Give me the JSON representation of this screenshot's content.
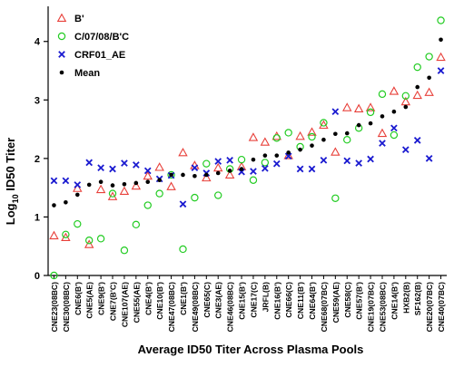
{
  "chart_data": {
    "type": "scatter",
    "xlabel": "Average ID50 Titer Across Plasma Pools",
    "ylabel": "Log10 ID50 Titer",
    "ylabel_main": "Log",
    "ylabel_sub": "10",
    "ylabel_rest": " ID50 Titer",
    "ylim": [
      0,
      4.6
    ],
    "yticks": [
      "0",
      "1",
      "2",
      "3",
      "4"
    ],
    "grid": false,
    "legend_position": "top-left",
    "categories": [
      "CNE23(08BC)",
      "CNE30(08BC)",
      "CNE6(B')",
      "CNE5(AE)",
      "CNE9(B')",
      "CNE7(B'C)",
      "CNE107(AE)",
      "CNE55(AE)",
      "CNE4(B')",
      "CNE10(B')",
      "CNE47(08BC)",
      "CNE1(B')",
      "CNE49(08BC)",
      "CNE65(C)",
      "CNE3(AE)",
      "CNE46(08BC)",
      "CNE15(B')",
      "CNE17(C)",
      "JRFL(B)",
      "CNE16(B')",
      "CNE66(C)",
      "CNE11(B')",
      "CNE64(B')",
      "CNE68(07BC)",
      "CNE59(AE)",
      "CNE58(C)",
      "CNE57(B')",
      "CNE19(07BC)",
      "CNE53(08BC)",
      "CNE14(B')",
      "HXB2(B)",
      "SF162(B)",
      "CNE20(07BC)",
      "CNE40(07BC)"
    ],
    "series": [
      {
        "name": "B'",
        "color": "#e8403a",
        "marker": "triangle-open",
        "values": [
          0.68,
          0.65,
          1.49,
          0.53,
          1.47,
          1.35,
          1.44,
          1.53,
          1.7,
          1.85,
          1.52,
          2.1,
          1.88,
          1.67,
          1.84,
          1.72,
          1.86,
          2.36,
          2.28,
          2.38,
          2.05,
          2.38,
          2.45,
          2.57,
          2.11,
          2.87,
          2.85,
          2.87,
          2.43,
          3.15,
          2.97,
          3.08,
          3.13,
          3.73
        ]
      },
      {
        "name": "C/07/08/B'C",
        "color": "#22cc22",
        "marker": "circle-open",
        "values": [
          0.0,
          0.7,
          0.88,
          0.6,
          0.63,
          1.4,
          0.43,
          0.87,
          1.2,
          1.4,
          1.72,
          0.45,
          1.33,
          1.91,
          1.37,
          1.82,
          1.98,
          1.63,
          1.93,
          2.35,
          2.44,
          2.2,
          2.37,
          2.61,
          1.32,
          2.32,
          2.52,
          2.79,
          3.1,
          2.4,
          3.07,
          3.56,
          3.74,
          4.36
        ]
      },
      {
        "name": "CRF01_AE",
        "color": "#1a1ad0",
        "marker": "x",
        "values": [
          1.62,
          1.62,
          1.55,
          1.93,
          1.84,
          1.82,
          1.92,
          1.89,
          1.79,
          1.65,
          1.71,
          1.22,
          1.84,
          1.75,
          1.95,
          1.97,
          1.77,
          1.78,
          1.83,
          1.91,
          2.04,
          1.82,
          1.82,
          1.97,
          2.8,
          1.96,
          1.92,
          1.99,
          2.26,
          2.52,
          2.15,
          2.31,
          2.0,
          3.5
        ]
      },
      {
        "name": "Mean",
        "color": "#000000",
        "marker": "dot",
        "values": [
          1.2,
          1.25,
          1.38,
          1.55,
          1.6,
          1.54,
          1.56,
          1.58,
          1.6,
          1.63,
          1.72,
          1.72,
          1.7,
          1.72,
          1.75,
          1.79,
          1.82,
          1.98,
          2.05,
          2.05,
          2.1,
          2.15,
          2.22,
          2.32,
          2.42,
          2.43,
          2.57,
          2.6,
          2.72,
          2.8,
          2.88,
          3.22,
          3.38,
          4.03
        ]
      }
    ]
  }
}
